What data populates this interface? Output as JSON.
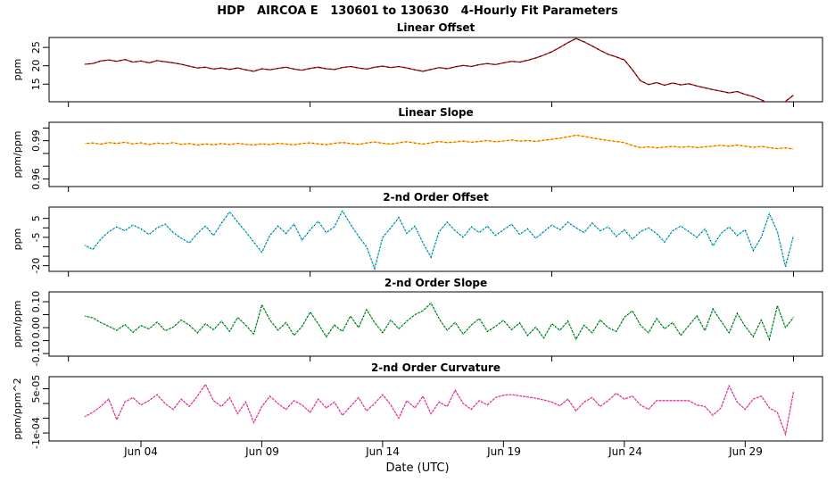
{
  "figure": {
    "title": "HDP   AIRCOA E   130601 to 130630   4-Hourly Fit Parameters",
    "xlabel": "Date (UTC)",
    "background": "#ffffff",
    "axis_color": "#000000"
  },
  "x_axis": {
    "tick_labels": [
      "Jun 04",
      "Jun 09",
      "Jun 14",
      "Jun 19",
      "Jun 24",
      "Jun 29"
    ],
    "tick_days": [
      4,
      9,
      14,
      19,
      24,
      29
    ],
    "minor_tick_days": [
      1,
      11,
      21,
      31
    ],
    "xlim_days": [
      0.2,
      32.2
    ]
  },
  "chart_data": [
    {
      "type": "line",
      "title": "Linear Offset",
      "ylabel": "ppm",
      "ylim": [
        10.2,
        27.7
      ],
      "yticks": [
        {
          "v": 15,
          "label": "15"
        },
        {
          "v": 20,
          "label": "20"
        },
        {
          "v": 25,
          "label": "25"
        }
      ],
      "line_color": "#cc0000",
      "dot_color": "#000000",
      "x_start_day": 1.67,
      "x_step_days": 0.3333,
      "values": [
        20.4,
        20.6,
        21.3,
        21.6,
        21.2,
        21.7,
        21.0,
        21.3,
        20.8,
        21.4,
        21.1,
        20.8,
        20.4,
        19.9,
        19.4,
        19.6,
        19.1,
        19.4,
        19.0,
        19.4,
        18.9,
        18.5,
        19.2,
        18.9,
        19.3,
        19.6,
        19.1,
        18.8,
        19.3,
        19.6,
        19.2,
        19.0,
        19.5,
        19.8,
        19.4,
        19.1,
        19.6,
        19.9,
        19.5,
        19.8,
        19.4,
        18.9,
        18.5,
        19.0,
        19.5,
        19.2,
        19.7,
        20.1,
        19.8,
        20.3,
        20.6,
        20.3,
        20.8,
        21.2,
        21.0,
        21.5,
        22.1,
        22.9,
        23.8,
        25.0,
        26.3,
        27.4,
        26.5,
        25.4,
        24.2,
        23.1,
        22.4,
        21.6,
        18.9,
        15.9,
        14.9,
        15.4,
        14.7,
        15.3,
        14.8,
        15.1,
        14.5,
        14.0,
        13.5,
        13.1,
        12.6,
        13.0,
        12.2,
        11.6,
        10.7,
        9.7,
        9.4,
        10.3,
        12.0
      ]
    },
    {
      "type": "line",
      "title": "Linear Slope",
      "ylabel": "ppm/ppm",
      "ylim": [
        0.954,
        1.0045
      ],
      "yticks": [
        {
          "v": 0.96,
          "label": "0.96"
        },
        {
          "v": 0.97
        },
        {
          "v": 0.98
        },
        {
          "v": 0.99,
          "label": "0.99"
        },
        {
          "v": 1.0
        }
      ],
      "line_color": "#ffd400",
      "dot_color": "#ff3300",
      "x_start_day": 1.67,
      "x_step_days": 0.3333,
      "values": [
        0.9878,
        0.9882,
        0.9874,
        0.9886,
        0.9879,
        0.9888,
        0.9875,
        0.9884,
        0.987,
        0.9882,
        0.9876,
        0.9885,
        0.9872,
        0.9878,
        0.9866,
        0.9875,
        0.9868,
        0.9878,
        0.987,
        0.988,
        0.9872,
        0.9866,
        0.9876,
        0.987,
        0.988,
        0.9874,
        0.9868,
        0.9878,
        0.9884,
        0.9875,
        0.987,
        0.988,
        0.9886,
        0.9878,
        0.9872,
        0.9882,
        0.989,
        0.988,
        0.9874,
        0.9884,
        0.9892,
        0.9882,
        0.9874,
        0.9884,
        0.9894,
        0.9885,
        0.989,
        0.9898,
        0.9888,
        0.9894,
        0.9902,
        0.9892,
        0.9898,
        0.9906,
        0.9896,
        0.9902,
        0.9895,
        0.9904,
        0.9912,
        0.992,
        0.993,
        0.9944,
        0.9934,
        0.9922,
        0.9912,
        0.9902,
        0.9894,
        0.9885,
        0.9862,
        0.9846,
        0.9852,
        0.9844,
        0.985,
        0.9856,
        0.9848,
        0.9854,
        0.9846,
        0.9852,
        0.9858,
        0.9864,
        0.9856,
        0.9866,
        0.9858,
        0.9848,
        0.9856,
        0.9846,
        0.9838,
        0.9844,
        0.9834
      ]
    },
    {
      "type": "line",
      "title": "2-nd Order Offset",
      "ylabel": "ppm",
      "ylim": [
        -23,
        11
      ],
      "yticks": [
        {
          "v": -20,
          "label": "-20"
        },
        {
          "v": -15
        },
        {
          "v": -10
        },
        {
          "v": -5,
          "label": "-5"
        },
        {
          "v": 0
        },
        {
          "v": 5,
          "label": "5"
        }
      ],
      "line_color": "#00dde0",
      "dot_color": "#1a1a50",
      "x_start_day": 1.67,
      "x_step_days": 0.3333,
      "values": [
        -9.0,
        -11.5,
        -6.0,
        -2.0,
        0.5,
        -1.5,
        1.5,
        -0.5,
        -3.5,
        0.0,
        2.0,
        -2.5,
        -5.5,
        -8.0,
        -3.0,
        1.0,
        -4.0,
        2.5,
        8.5,
        3.0,
        -2.0,
        -7.5,
        -13.0,
        -4.0,
        1.0,
        -3.0,
        2.0,
        -6.5,
        -1.0,
        3.5,
        -2.5,
        0.5,
        9.0,
        2.0,
        -4.5,
        -10.0,
        -21.5,
        -5.0,
        0.0,
        5.5,
        -3.0,
        1.0,
        -8.0,
        -15.5,
        -2.0,
        3.0,
        -1.5,
        -5.0,
        0.5,
        -2.5,
        1.0,
        -4.0,
        -1.0,
        2.0,
        -3.5,
        -0.5,
        -5.5,
        -2.0,
        1.5,
        -1.0,
        3.0,
        0.0,
        -2.5,
        2.5,
        -1.5,
        0.5,
        -4.5,
        -1.0,
        -6.0,
        -2.0,
        0.0,
        -3.0,
        -7.5,
        -1.5,
        1.0,
        -2.0,
        -5.0,
        -0.5,
        -9.5,
        -3.0,
        0.5,
        -4.0,
        -1.0,
        -12.0,
        -5.0,
        7.5,
        -2.0,
        -20.5,
        -4.0
      ]
    },
    {
      "type": "line",
      "title": "2-nd Order Slope",
      "ylabel": "ppm/ppm",
      "ylim": [
        -0.11,
        0.138
      ],
      "yticks": [
        {
          "v": -0.1,
          "label": "-0.10"
        },
        {
          "v": -0.05
        },
        {
          "v": 0,
          "label": "0.00"
        },
        {
          "v": 0.05
        },
        {
          "v": 0.1,
          "label": "0.10"
        }
      ],
      "line_color": "#00cc33",
      "dot_color": "#0a0a0a",
      "x_start_day": 1.67,
      "x_step_days": 0.3333,
      "values": [
        0.045,
        0.038,
        0.02,
        0.005,
        -0.01,
        0.012,
        -0.018,
        0.008,
        -0.005,
        0.022,
        -0.012,
        0.002,
        0.03,
        0.01,
        -0.02,
        0.015,
        -0.008,
        0.025,
        -0.015,
        0.04,
        0.01,
        -0.025,
        0.088,
        0.03,
        -0.01,
        0.02,
        -0.03,
        0.005,
        0.06,
        0.015,
        -0.035,
        0.01,
        -0.015,
        0.045,
        0.0,
        0.07,
        0.02,
        -0.02,
        0.03,
        -0.005,
        0.025,
        0.05,
        0.065,
        0.095,
        0.035,
        -0.01,
        0.02,
        -0.025,
        0.01,
        0.035,
        -0.015,
        0.005,
        0.028,
        -0.008,
        0.018,
        -0.03,
        0.002,
        -0.04,
        0.015,
        -0.01,
        0.025,
        -0.045,
        0.01,
        -0.02,
        0.03,
        0.0,
        -0.015,
        0.04,
        0.065,
        0.01,
        -0.02,
        0.035,
        -0.005,
        0.02,
        -0.03,
        0.008,
        0.045,
        -0.012,
        0.072,
        0.025,
        -0.02,
        0.055,
        0.005,
        -0.035,
        0.03,
        -0.045,
        0.085,
        0.0,
        0.04
      ]
    },
    {
      "type": "line",
      "title": "2-nd Order Curvature",
      "ylabel": "ppm/ppm^2",
      "ylim": [
        -0.000127,
        9.1e-05
      ],
      "yticks": [
        {
          "v": -0.0001,
          "label": "-1e-04"
        },
        {
          "v": -5e-05
        },
        {
          "v": 0
        },
        {
          "v": 5e-05,
          "label": "5e-05"
        }
      ],
      "line_color": "#dc4570",
      "dot_color": "#f000d0",
      "x_start_day": 1.67,
      "x_step_days": 0.3333,
      "values": [
        -4.5e-05,
        -3e-05,
        -1e-05,
        1.5e-05,
        -5.5e-05,
        5e-06,
        2e-05,
        -5e-06,
        1e-05,
        3e-05,
        0.0,
        -2e-05,
        1.5e-05,
        -1e-05,
        2.5e-05,
        6.5e-05,
        1e-05,
        -1e-05,
        2e-05,
        -3.5e-05,
        5e-06,
        -6.5e-05,
        -1e-05,
        2.5e-05,
        0.0,
        -2e-05,
        1e-05,
        -5e-06,
        -3e-05,
        1.5e-05,
        -1.5e-05,
        5e-06,
        -4e-05,
        -1e-05,
        2e-05,
        -2.5e-05,
        0.0,
        3e-05,
        -5e-06,
        -5e-05,
        1e-05,
        -1.5e-05,
        2.5e-05,
        -3.5e-05,
        5e-06,
        -1e-05,
        4.5e-05,
        0.0,
        -2e-05,
        1e-05,
        -5e-06,
        2e-05,
        2.8e-05,
        3e-05,
        2.6e-05,
        2.2e-05,
        1.8e-05,
        1.2e-05,
        5e-06,
        -8e-06,
        1.5e-05,
        -2.5e-05,
        5e-06,
        2e-05,
        -1e-05,
        1e-05,
        3.5e-05,
        1.5e-05,
        2.5e-05,
        -5e-06,
        -2e-05,
        1e-05,
        1e-05,
        1e-05,
        1e-05,
        1e-05,
        -5e-06,
        -1e-05,
        -4e-05,
        -1.5e-05,
        6e-05,
        5e-06,
        -2e-05,
        1.5e-05,
        2.5e-05,
        -1.5e-05,
        -3e-05,
        -0.000105,
        4e-05
      ]
    }
  ]
}
